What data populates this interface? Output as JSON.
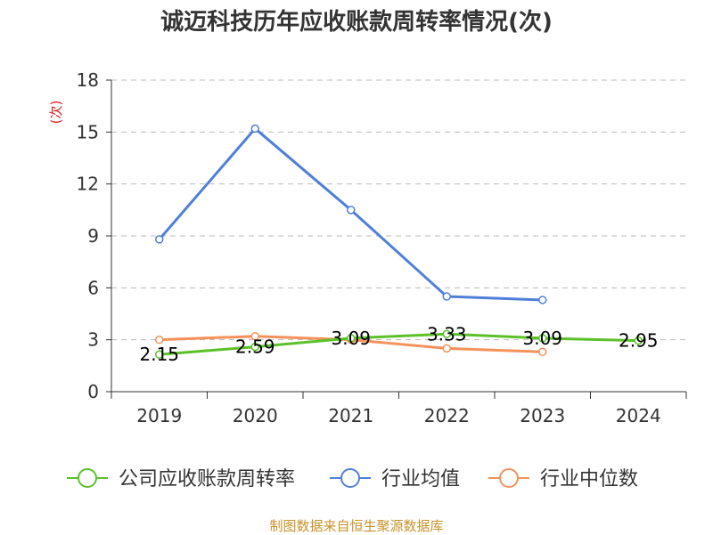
{
  "title": "诚迈科技历年应收账款周转率情况(次)",
  "source": "制图数据来自恒生聚源数据库",
  "colors": {
    "company": "#5cc129",
    "industry_avg": "#4f7fd9",
    "industry_median": "#f5915a",
    "grid": "#bbbbbb",
    "axis": "#333333"
  },
  "chart_data": {
    "type": "line",
    "title": "诚迈科技历年应收账款周转率情况(次)",
    "ylabel": "(次)",
    "xlabel": "",
    "categories": [
      "2019",
      "2020",
      "2021",
      "2022",
      "2023",
      "2024"
    ],
    "ylim": [
      0,
      18
    ],
    "yticks": [
      0,
      3,
      6,
      9,
      12,
      15,
      18
    ],
    "grid": "horizontal dashed",
    "legend_position": "bottom",
    "series": [
      {
        "name": "公司应收账款周转率",
        "color": "#5cc129",
        "values": [
          2.15,
          2.59,
          3.09,
          3.33,
          3.09,
          2.95
        ],
        "labels": [
          "2.15",
          "2.59",
          "3.09",
          "3.33",
          "3.09",
          "2.95"
        ]
      },
      {
        "name": "行业均值",
        "color": "#4f7fd9",
        "values": [
          8.8,
          15.2,
          10.5,
          5.5,
          5.3,
          null
        ]
      },
      {
        "name": "行业中位数",
        "color": "#f5915a",
        "values": [
          3.0,
          3.2,
          3.0,
          2.5,
          2.3,
          null
        ]
      }
    ]
  }
}
